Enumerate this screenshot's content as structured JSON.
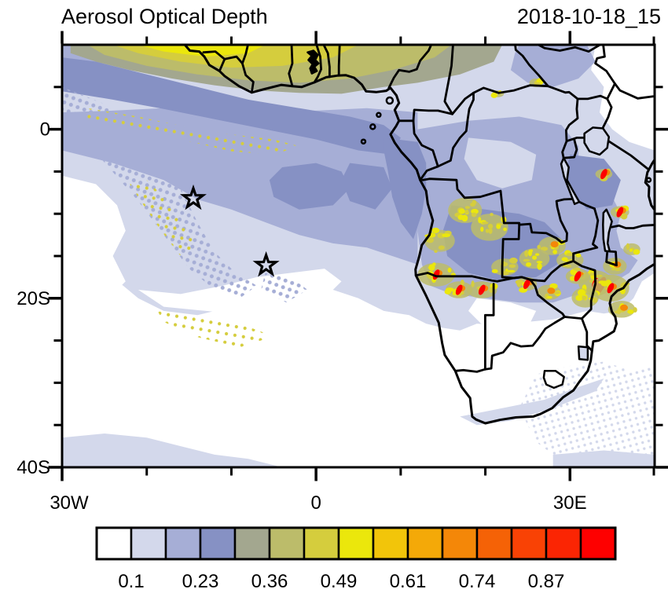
{
  "header": {
    "title": "Aerosol Optical Depth",
    "timestamp": "2018-10-18_15"
  },
  "axes": {
    "x": {
      "major": [
        {
          "lon": -30,
          "label": "30W"
        },
        {
          "lon": 0,
          "label": "0"
        },
        {
          "lon": 30,
          "label": "30E"
        }
      ],
      "minor_lons": [
        -20,
        -10,
        10,
        20,
        40
      ]
    },
    "y": {
      "major": [
        {
          "lat": 0,
          "label": "0"
        },
        {
          "lat": -20,
          "label": "20S"
        },
        {
          "lat": -40,
          "label": "40S"
        }
      ],
      "minor_lats": [
        5,
        -5,
        -10,
        -15,
        -25,
        -30,
        -35
      ]
    }
  },
  "colorbar": {
    "cell_colors": [
      "#ffffff",
      "#d3d8eb",
      "#a6aed6",
      "#8691c4",
      "#a3a78f",
      "#bcbc6a",
      "#d5cd3d",
      "#ebe70c",
      "#f2c50a",
      "#f4a908",
      "#f48708",
      "#f56206",
      "#f94205",
      "#fb2503",
      "#fe0000"
    ],
    "labels": [
      "0.1",
      "0.23",
      "0.36",
      "0.49",
      "0.61",
      "0.74",
      "0.87"
    ],
    "label_after_cell": [
      1,
      3,
      5,
      7,
      9,
      11,
      13
    ]
  },
  "chart_data": {
    "type": "heatmap",
    "title": "Aerosol Optical Depth",
    "time": "2018-10-18_15",
    "lon_range": [
      -30,
      40
    ],
    "lat_range": [
      -40,
      10
    ],
    "x_tick_labels": [
      "30W",
      "0",
      "30E"
    ],
    "y_tick_labels": [
      "0",
      "20S",
      "40S"
    ],
    "colorbar_labeled_levels": [
      0.1,
      0.23,
      0.36,
      0.49,
      0.61,
      0.74,
      0.87
    ],
    "contour_interval": 0.065,
    "palette": [
      "#ffffff",
      "#d3d8eb",
      "#a6aed6",
      "#8691c4",
      "#a3a78f",
      "#bcbc6a",
      "#d5cd3d",
      "#ebe70c",
      "#f2c50a",
      "#f4a908",
      "#f48708",
      "#f56206",
      "#f94205",
      "#fb2503",
      "#fe0000"
    ],
    "markers": [
      {
        "shape": "star",
        "lon": -14.5,
        "lat": -8.2
      },
      {
        "shape": "star",
        "lon": -5.9,
        "lat": -16.1
      }
    ],
    "features": [
      {
        "desc": "Dust/smoke band along 5-10N over West Africa and Gulf of Guinea",
        "aod_approx": "0.36-0.55"
      },
      {
        "desc": "Speckled aerosol plume over tropical South Atlantic, equator to ~15S",
        "aod_approx": "0.1-0.3"
      },
      {
        "desc": "Biomass-burning hotspots over Angola, Zambia, Zimbabwe, Mozambique (10-20S)",
        "aod_approx": "0.5-1.0"
      },
      {
        "desc": "Clean air over East Africa, central/south South Atlantic and South Africa",
        "aod_approx": "<0.1"
      }
    ],
    "hotspots_lonlat": [
      [
        14.2,
        -17.2
      ],
      [
        16.9,
        -19.0
      ],
      [
        19.6,
        -19.0
      ],
      [
        24.9,
        -18.3
      ],
      [
        27.5,
        -19.3
      ],
      [
        27.9,
        -13.8
      ],
      [
        30.9,
        -17.4
      ],
      [
        33.0,
        -18.2
      ],
      [
        34.8,
        -18.8
      ],
      [
        36.1,
        -21.3
      ],
      [
        34.0,
        -5.3
      ],
      [
        35.9,
        -9.8
      ]
    ]
  }
}
